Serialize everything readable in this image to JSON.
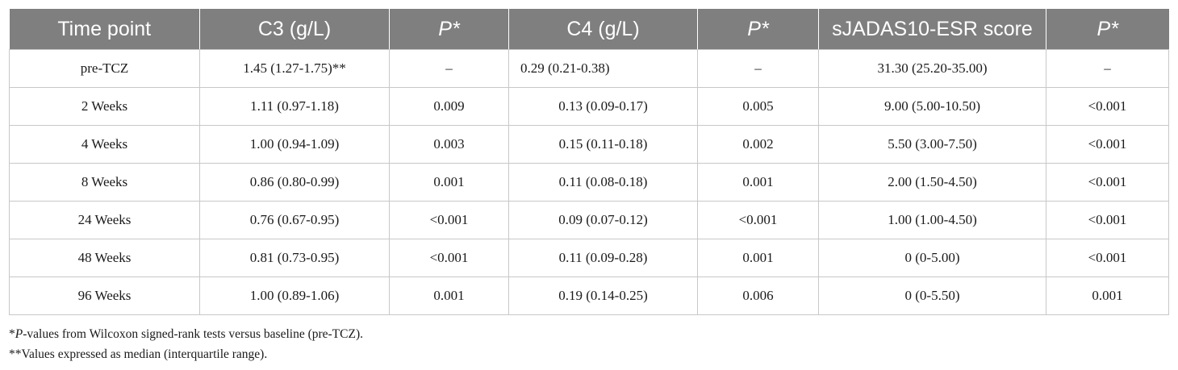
{
  "table": {
    "headers": [
      {
        "label": "Time point",
        "italic": false
      },
      {
        "label": "C3 (g/L)",
        "italic": false
      },
      {
        "label": "P*",
        "italic": true
      },
      {
        "label": "C4 (g/L)",
        "italic": false
      },
      {
        "label": "P*",
        "italic": true
      },
      {
        "label": "sJADAS10-ESR score",
        "italic": false
      },
      {
        "label": "P*",
        "italic": true
      }
    ],
    "rows": [
      [
        "pre-TCZ",
        "1.45 (1.27-1.75)**",
        "–",
        "0.29 (0.21-0.38)",
        "–",
        "31.30 (25.20-35.00)",
        "–"
      ],
      [
        "2 Weeks",
        "1.11 (0.97-1.18)",
        "0.009",
        "0.13 (0.09-0.17)",
        "0.005",
        "9.00 (5.00-10.50)",
        "<0.001"
      ],
      [
        "4 Weeks",
        "1.00 (0.94-1.09)",
        "0.003",
        "0.15 (0.11-0.18)",
        "0.002",
        "5.50 (3.00-7.50)",
        "<0.001"
      ],
      [
        "8 Weeks",
        "0.86 (0.80-0.99)",
        "0.001",
        "0.11 (0.08-0.18)",
        "0.001",
        "2.00 (1.50-4.50)",
        "<0.001"
      ],
      [
        "24 Weeks",
        "0.76 (0.67-0.95)",
        "<0.001",
        "0.09 (0.07-0.12)",
        "<0.001",
        "1.00 (1.00-4.50)",
        "<0.001"
      ],
      [
        "48 Weeks",
        "0.81 (0.73-0.95)",
        "<0.001",
        "0.11 (0.09-0.28)",
        "0.001",
        "0 (0-5.00)",
        "<0.001"
      ],
      [
        "96 Weeks",
        "1.00 (0.89-1.06)",
        "0.001",
        "0.19 (0.14-0.25)",
        "0.006",
        "0 (0-5.50)",
        "0.001"
      ]
    ]
  },
  "footnotes": {
    "note1_prefix": "*",
    "note1_italic": "P",
    "note1_rest": "-values from Wilcoxon signed-rank tests versus baseline (pre-TCZ).",
    "note2": "**Values expressed as median (interquartile range)."
  },
  "colors": {
    "header_bg": "#7f7f7f",
    "header_text": "#ffffff",
    "grid": "#c8c8c8"
  }
}
